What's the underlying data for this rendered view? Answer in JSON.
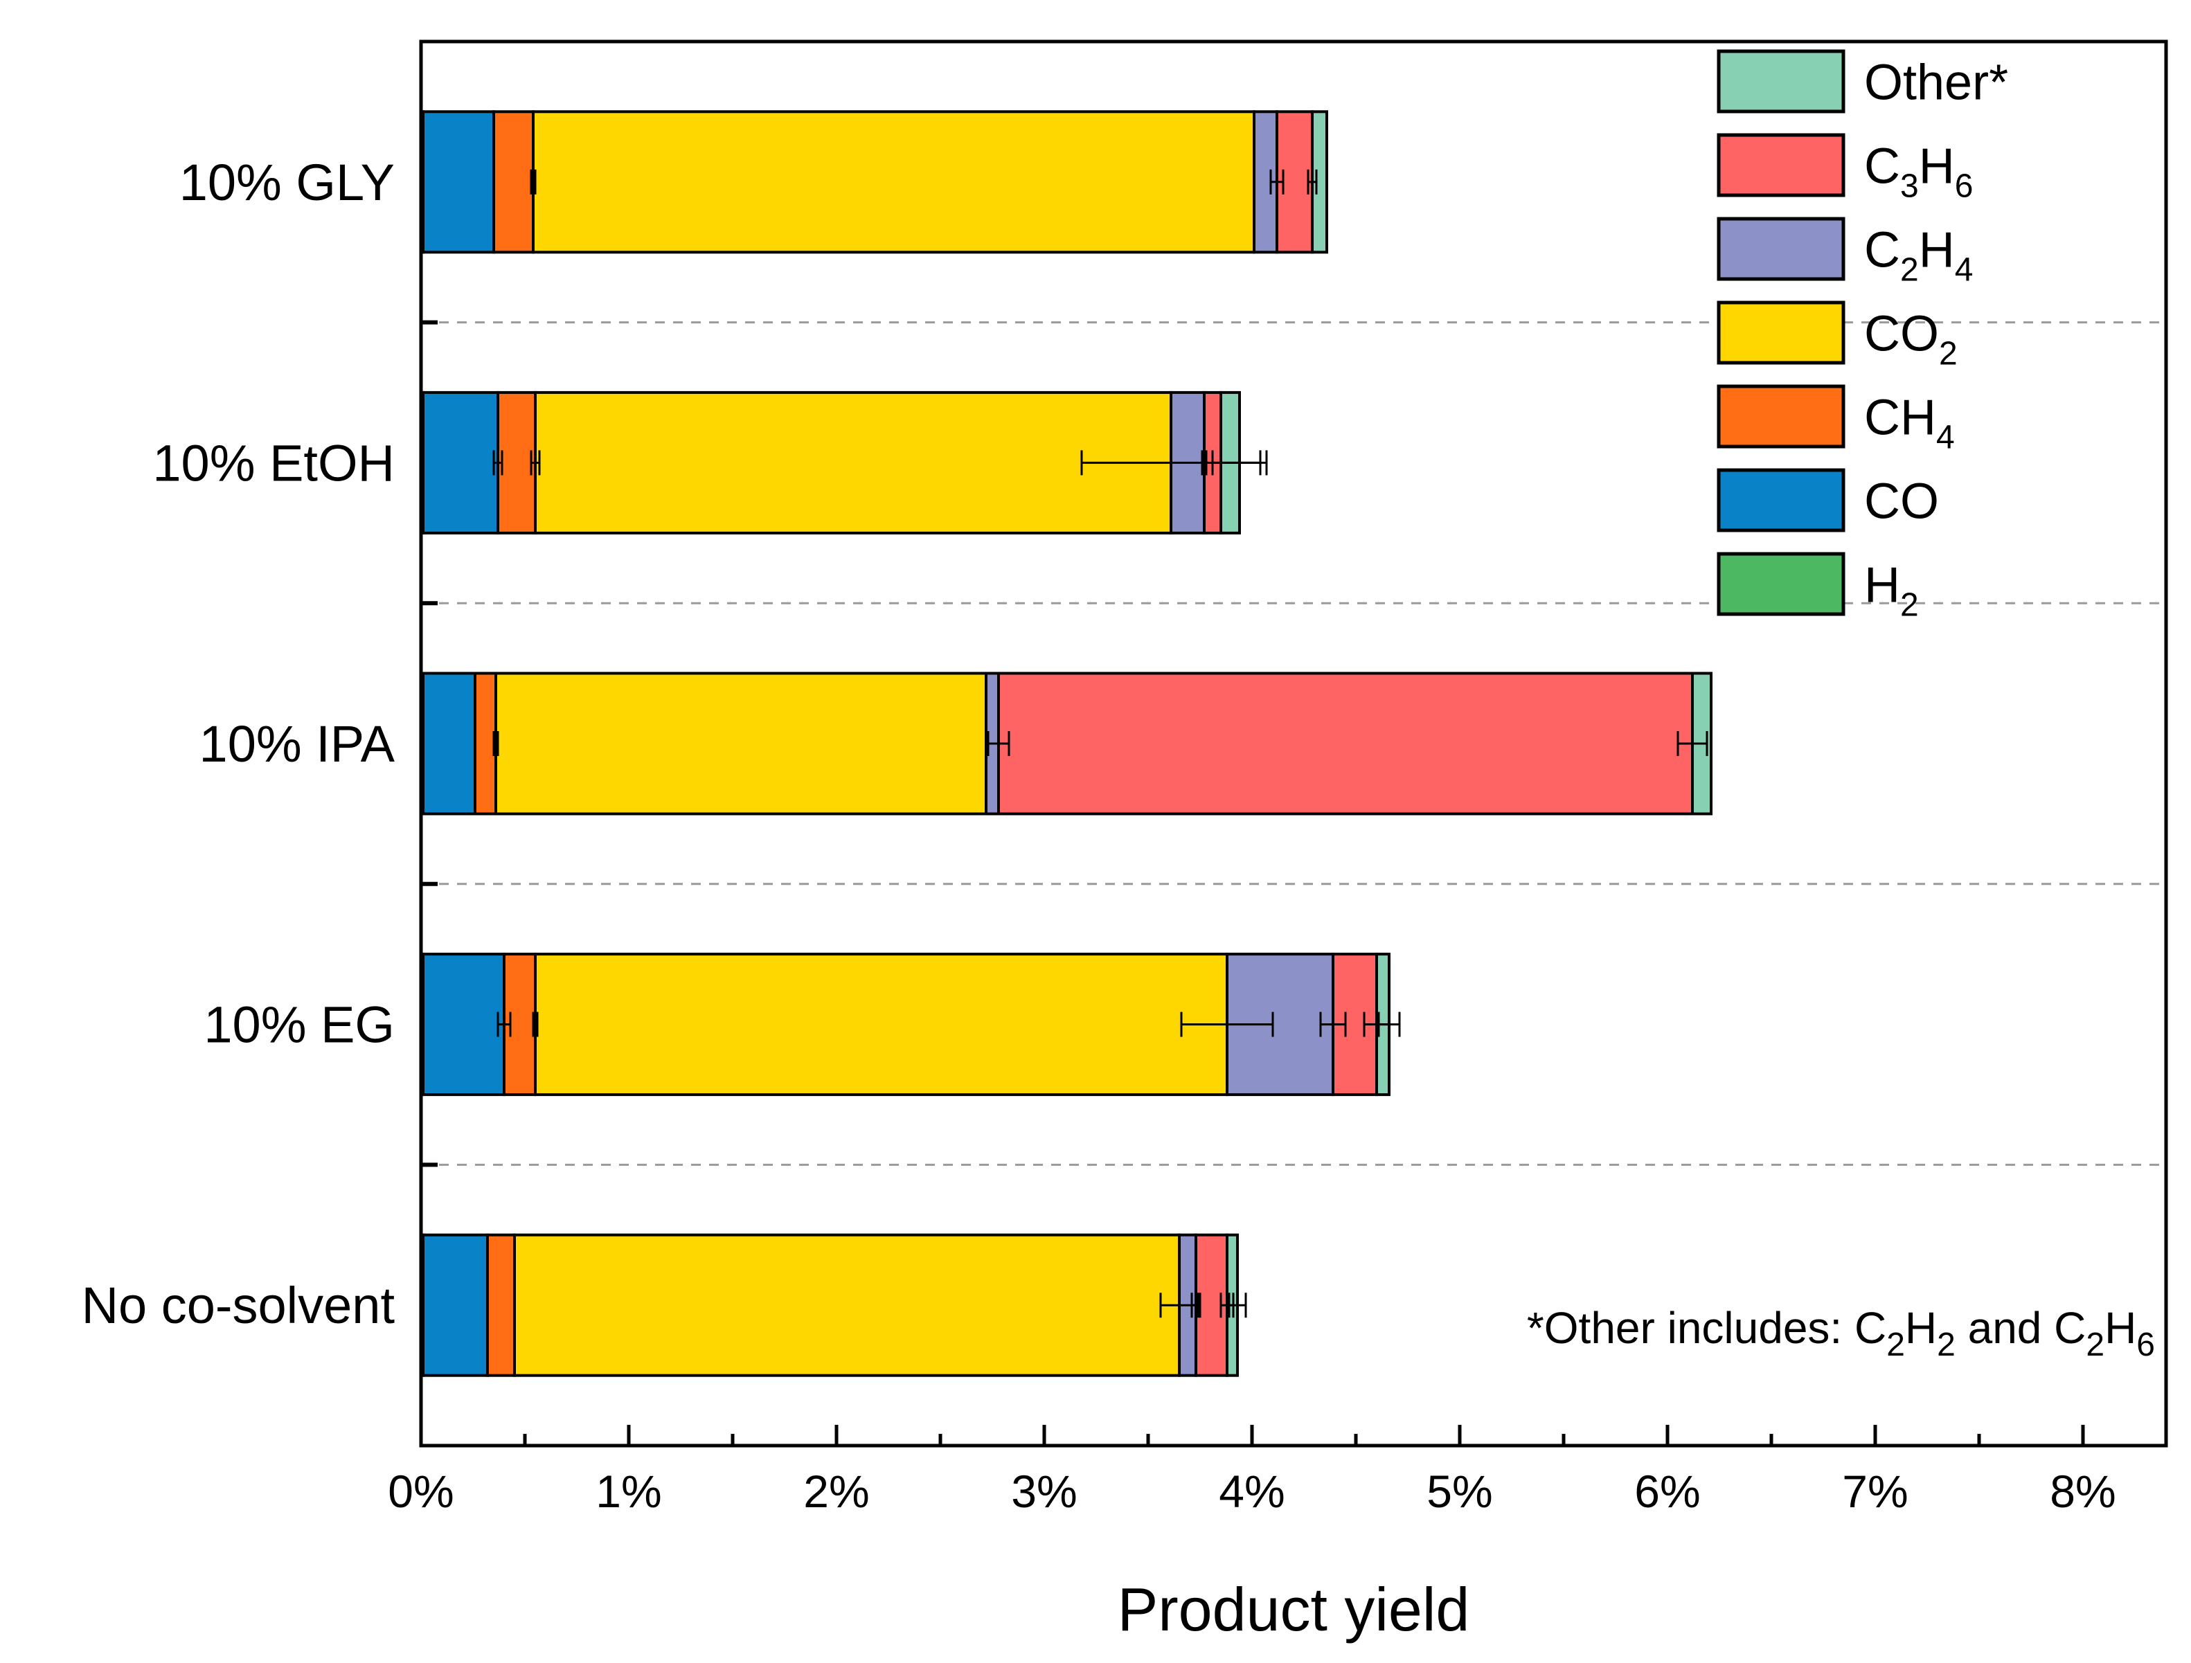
{
  "chart_data": {
    "type": "bar",
    "orientation": "horizontal",
    "stacked": true,
    "title": "",
    "xlabel": "Product yield",
    "ylabel": "",
    "xlim": [
      0,
      0.084
    ],
    "x_ticks": [
      0,
      0.01,
      0.02,
      0.03,
      0.04,
      0.05,
      0.06,
      0.07,
      0.08
    ],
    "x_tick_labels": [
      "0%",
      "1%",
      "2%",
      "3%",
      "4%",
      "5%",
      "6%",
      "7%",
      "8%"
    ],
    "categories": [
      "10% GLY",
      "10% EtOH",
      "10% IPA",
      "10% EG",
      "No co-solvent"
    ],
    "grid": "dashed separators between categories",
    "legend_position": "top-right",
    "series": [
      {
        "name": "H2",
        "label_base": "H",
        "label_sub": "2",
        "color": "#4cb962",
        "values": [
          0.0001,
          0.0001,
          0.0001,
          0.0001,
          0.0001
        ],
        "errors": [
          0,
          0,
          0,
          0,
          0
        ]
      },
      {
        "name": "CO",
        "label_base": "CO",
        "label_sub": "",
        "color": "#0a82c7",
        "values": [
          0.0034,
          0.0036,
          0.0025,
          0.0039,
          0.0031
        ],
        "errors": [
          0,
          0.0002,
          0,
          0.0003,
          0
        ]
      },
      {
        "name": "CH4",
        "label_base": "CH",
        "label_sub": "4",
        "color": "#ff6e14",
        "values": [
          0.0019,
          0.0018,
          0.001,
          0.0015,
          0.0013
        ],
        "errors": [
          0.0001,
          0.0002,
          0.0001,
          0.0001,
          0
        ]
      },
      {
        "name": "CO2",
        "label_base": "CO",
        "label_sub": "2",
        "color": "#ffd700",
        "values": [
          0.0347,
          0.0306,
          0.0236,
          0.0333,
          0.032
        ],
        "errors": [
          0,
          0.0043,
          0,
          0.0022,
          0.0009
        ]
      },
      {
        "name": "C2H4",
        "label_base": "C",
        "label_sub": "2",
        "label_base2": "H",
        "label_sub2": "4",
        "color": "#8c92c8",
        "values": [
          0.0011,
          0.0016,
          0.0006,
          0.0051,
          0.0008
        ],
        "errors": [
          0.0003,
          0.0001,
          0.0005,
          0.0006,
          0.0002
        ]
      },
      {
        "name": "C3H6",
        "label_base": "C",
        "label_sub": "3",
        "label_base2": "H",
        "label_sub2": "6",
        "color": "#ff6464",
        "values": [
          0.0017,
          0.0008,
          0.0334,
          0.0021,
          0.0015
        ],
        "errors": [
          0.0002,
          0,
          0.0007,
          0.0006,
          0.0003
        ]
      },
      {
        "name": "Other*",
        "label_base": "Other*",
        "label_sub": "",
        "color": "#88d0b4",
        "values": [
          0.0007,
          0.0009,
          0.0009,
          0.0006,
          0.0005
        ],
        "errors": [
          0,
          0.0013,
          0,
          0.0005,
          0.0004
        ]
      }
    ],
    "legend_order": [
      "Other*",
      "C3H6",
      "C2H4",
      "CO2",
      "CH4",
      "CO",
      "H2"
    ],
    "footnote": {
      "prefix": "*Other includes: ",
      "part1_base": "C",
      "part1_sub1": "2",
      "part1_mid": "H",
      "part1_sub2": "2",
      "joiner": " and ",
      "part2_base": "C",
      "part2_sub1": "2",
      "part2_mid": "H",
      "part2_sub2": "6"
    }
  }
}
